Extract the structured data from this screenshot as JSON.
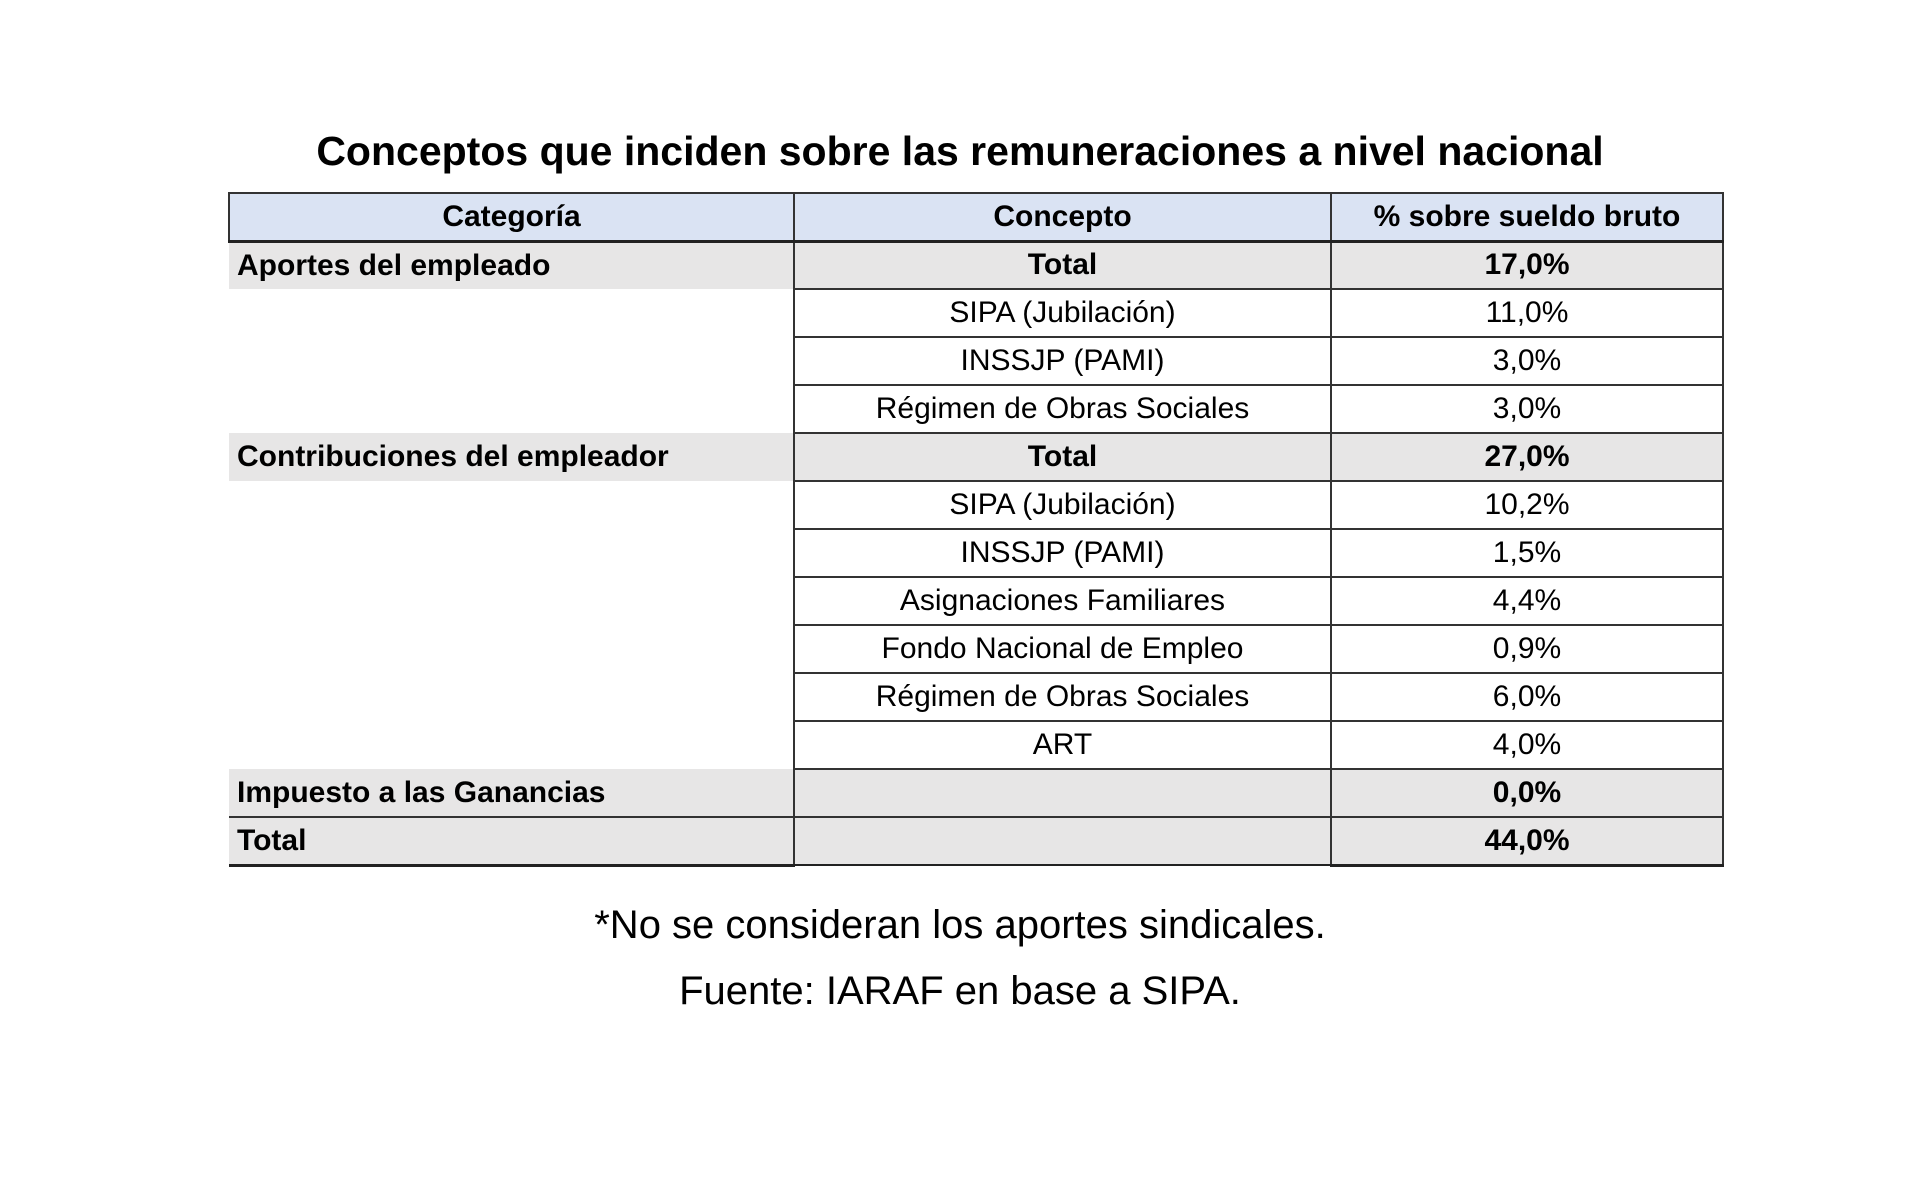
{
  "title": "Conceptos que inciden sobre las remuneraciones a nivel nacional",
  "table": {
    "header": [
      "Categoría",
      "Concepto",
      "% sobre sueldo bruto"
    ],
    "rows": [
      [
        "Aportes del empleado",
        "Total",
        "17,0%"
      ],
      [
        null,
        "SIPA (Jubilación)",
        "11,0%"
      ],
      [
        null,
        "INSSJP (PAMI)",
        "3,0%"
      ],
      [
        null,
        "Régimen de Obras Sociales",
        "3,0%"
      ],
      [
        "Contribuciones del empleador",
        "Total",
        "27,0%"
      ],
      [
        null,
        "SIPA (Jubilación)",
        "10,2%"
      ],
      [
        null,
        "INSSJP (PAMI)",
        "1,5%"
      ],
      [
        null,
        "Asignaciones Familiares",
        "4,4%"
      ],
      [
        null,
        "Fondo Nacional de Empleo",
        "0,9%"
      ],
      [
        null,
        "Régimen de Obras Sociales",
        "6,0%"
      ],
      [
        null,
        "ART",
        "4,0%"
      ],
      [
        "Impuesto a las Ganancias",
        null,
        "0,0%"
      ],
      [
        "Total",
        null,
        "44,0%"
      ]
    ]
  },
  "notes": [
    "*No se consideran los aportes sindicales.",
    "Fuente: IARAF en base a SIPA."
  ]
}
